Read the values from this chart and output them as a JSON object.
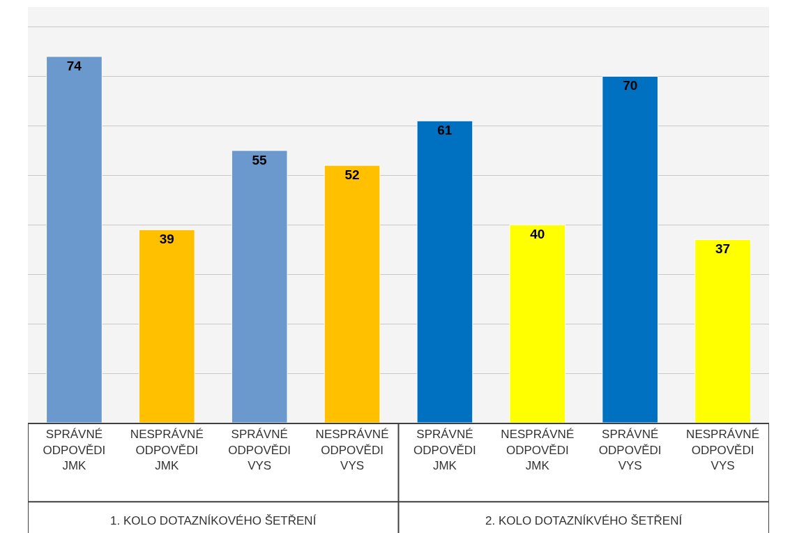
{
  "chart_data": {
    "type": "bar",
    "categories": [
      "SPRÁVNÉ ODPOVĚDI JMK",
      "NESPRÁVNÉ ODPOVĚDI JMK",
      "SPRÁVNÉ ODPOVĚDI VYS",
      "NESPRÁVNÉ ODPOVĚDI VYS",
      "SPRÁVNÉ ODPOVĚDI JMK",
      "NESPRÁVNÉ ODPOVĚDI JMK",
      "SPRÁVNÉ ODPOVĚDI VYS",
      "NESPRÁVNÉ ODPOVĚDI VYS"
    ],
    "values": [
      74,
      39,
      55,
      52,
      61,
      40,
      70,
      37
    ],
    "colors": [
      "#6b98cd",
      "#ffc000",
      "#6b98cd",
      "#ffc000",
      "#0070c0",
      "#ffff00",
      "#0070c0",
      "#ffff00"
    ],
    "data_labels": true,
    "ylim": [
      0,
      84
    ],
    "yticks": [
      {
        "value": 0,
        "label": null
      },
      {
        "value": 10,
        "label": null
      },
      {
        "value": 20,
        "label": null
      },
      {
        "value": 30,
        "label": null
      },
      {
        "value": 40,
        "label": null
      },
      {
        "value": 50,
        "label": null
      },
      {
        "value": 60,
        "label": null
      },
      {
        "value": 70,
        "label": null
      },
      {
        "value": 80,
        "label": null
      }
    ],
    "tick_labels": "x",
    "grid": "y",
    "annotations": [
      "1. KOLO DOTAZNÍKOVÉHO ŠETŘENÍ",
      "2. KOLO DOTAZNÍKVÉHO ŠETŘENÍ"
    ]
  }
}
